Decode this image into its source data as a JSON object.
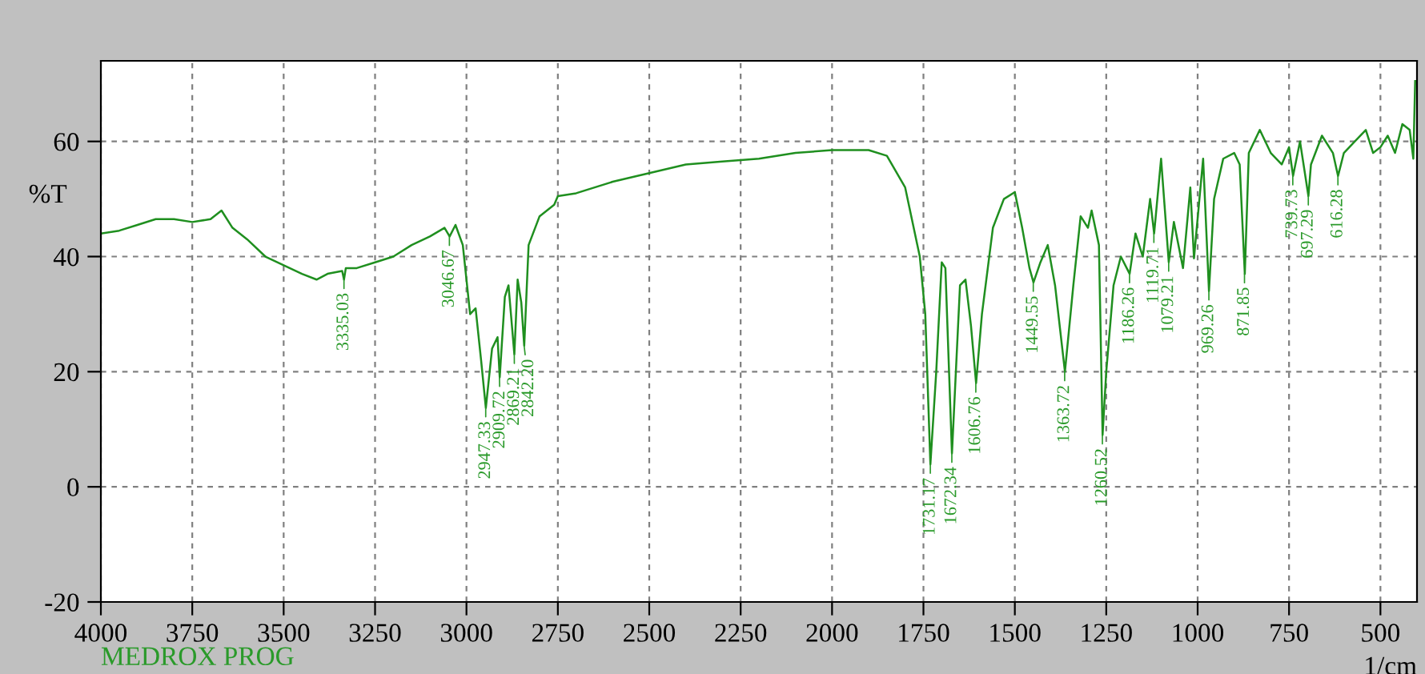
{
  "chart_data": {
    "type": "line",
    "xlabel": "1/cm",
    "ylabel": "%T",
    "annotations": [
      "MEDROX PROG",
      {
        "text": "3335.03",
        "x": 3335.03,
        "y": 36
      },
      {
        "text": "3046.67",
        "x": 3046.67,
        "y": 43.5
      },
      {
        "text": "2947.33",
        "x": 2947.33,
        "y": 13.7
      },
      {
        "text": "2909.72",
        "x": 2909.72,
        "y": 19
      },
      {
        "text": "2869.21",
        "x": 2869.21,
        "y": 23
      },
      {
        "text": "2842.20",
        "x": 2842.2,
        "y": 24.5
      },
      {
        "text": "1731.17",
        "x": 1731.17,
        "y": 3.9
      },
      {
        "text": "1672.34",
        "x": 1672.34,
        "y": 5.8
      },
      {
        "text": "1606.76",
        "x": 1606.76,
        "y": 18
      },
      {
        "text": "1449.55",
        "x": 1449.55,
        "y": 35.5
      },
      {
        "text": "1363.72",
        "x": 1363.72,
        "y": 20
      },
      {
        "text": "1260.52",
        "x": 1260.52,
        "y": 9
      },
      {
        "text": "1186.26",
        "x": 1186.26,
        "y": 37
      },
      {
        "text": "1119.71",
        "x": 1119.71,
        "y": 44
      },
      {
        "text": "1079.21",
        "x": 1079.21,
        "y": 39
      },
      {
        "text": "969.26",
        "x": 969.26,
        "y": 34
      },
      {
        "text": "871.85",
        "x": 871.85,
        "y": 37
      },
      {
        "text": "739.73",
        "x": 739.73,
        "y": 54
      },
      {
        "text": "697.29",
        "x": 697.29,
        "y": 50.5
      },
      {
        "text": "616.28",
        "x": 616.28,
        "y": 54
      }
    ],
    "series": [
      {
        "color": "#1f8f1f",
        "x": [
          4000,
          3950,
          3900,
          3850,
          3800,
          3750,
          3700,
          3670,
          3640,
          3600,
          3550,
          3500,
          3450,
          3410,
          3380,
          3340,
          3335,
          3330,
          3300,
          3250,
          3200,
          3150,
          3100,
          3060,
          3046,
          3030,
          3010,
          2990,
          2975,
          2960,
          2947,
          2930,
          2915,
          2909,
          2895,
          2885,
          2869,
          2860,
          2850,
          2842,
          2830,
          2800,
          2760,
          2750,
          2700,
          2600,
          2500,
          2400,
          2300,
          2200,
          2100,
          2000,
          1900,
          1850,
          1800,
          1760,
          1745,
          1731,
          1715,
          1700,
          1690,
          1672,
          1650,
          1635,
          1620,
          1606,
          1590,
          1560,
          1530,
          1500,
          1480,
          1460,
          1449,
          1430,
          1410,
          1390,
          1363,
          1340,
          1320,
          1300,
          1290,
          1270,
          1260,
          1250,
          1230,
          1210,
          1186,
          1170,
          1150,
          1130,
          1119,
          1100,
          1079,
          1065,
          1040,
          1020,
          1010,
          985,
          969,
          955,
          930,
          900,
          885,
          871,
          860,
          830,
          800,
          770,
          750,
          739,
          720,
          697,
          690,
          660,
          630,
          616,
          600,
          570,
          540,
          520,
          500,
          480,
          460,
          440,
          420,
          410,
          405
        ],
        "values": [
          44,
          44.5,
          45.5,
          46.5,
          46.5,
          46,
          46.5,
          48,
          45,
          43,
          40,
          38.5,
          37,
          36,
          37,
          37.5,
          36,
          38,
          38,
          39,
          40,
          42,
          43.5,
          45,
          43.5,
          45.5,
          42,
          30,
          31,
          22,
          13.7,
          24,
          26,
          19,
          33,
          35,
          23,
          36,
          32,
          24.5,
          42,
          47,
          49,
          50.5,
          51,
          53,
          54.5,
          56,
          56.5,
          57,
          58,
          58.5,
          58.5,
          57.5,
          52,
          40,
          30,
          3.9,
          20,
          39,
          38,
          5.8,
          35,
          36,
          28,
          18,
          30,
          45,
          50,
          51.2,
          45,
          38,
          35.5,
          39,
          42,
          35,
          20,
          35,
          47,
          45,
          48,
          42,
          9,
          20,
          35,
          40,
          37,
          44,
          40,
          50,
          44,
          57,
          39,
          46,
          38,
          52,
          39.7,
          57,
          34,
          50,
          57,
          58,
          56,
          37,
          58,
          62,
          58,
          56,
          59,
          54,
          60,
          50.5,
          56,
          61,
          58,
          54,
          58,
          60,
          62,
          58,
          59,
          61,
          58,
          63,
          62,
          57,
          70.5
        ]
      }
    ],
    "xlim": [
      4000,
      400
    ],
    "ylim": [
      -20,
      74
    ],
    "xticks": [
      4000,
      3750,
      3500,
      3250,
      3000,
      2750,
      2500,
      2250,
      2000,
      1750,
      1500,
      1250,
      1000,
      750,
      500
    ],
    "yticks": [
      -20,
      0,
      20,
      40,
      60
    ],
    "grid": true,
    "line_style": "solid",
    "marker": "none"
  }
}
